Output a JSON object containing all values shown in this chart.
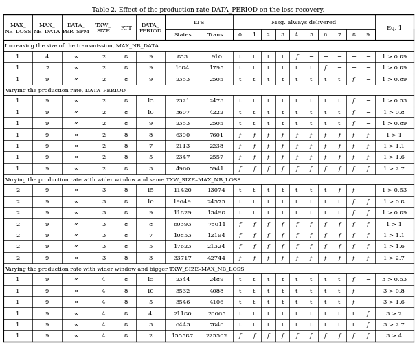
{
  "col_widths_raw": [
    4.5,
    4.5,
    4.5,
    4.0,
    3.0,
    4.5,
    5.5,
    5.0,
    2.2,
    2.2,
    2.2,
    2.2,
    2.2,
    2.2,
    2.2,
    2.2,
    2.2,
    2.2,
    6.0
  ],
  "rows": [
    [
      "1",
      "4",
      "∞",
      "2",
      "8",
      "9",
      "853",
      "910",
      "t",
      "t",
      "t",
      "t",
      "f",
      "−",
      "−",
      "−",
      "−",
      "−",
      "1 > 0.89"
    ],
    [
      "1",
      "7",
      "∞",
      "2",
      "8",
      "9",
      "1684",
      "1795",
      "t",
      "t",
      "t",
      "t",
      "t",
      "t",
      "f",
      "−",
      "−",
      "−",
      "1 > 0.89"
    ],
    [
      "1",
      "9",
      "∞",
      "2",
      "8",
      "9",
      "2353",
      "2505",
      "t",
      "t",
      "t",
      "t",
      "t",
      "t",
      "t",
      "t",
      "f",
      "−",
      "1 > 0.89"
    ],
    [
      "1",
      "9",
      "∞",
      "2",
      "8",
      "15",
      "2321",
      "2473",
      "t",
      "t",
      "t",
      "t",
      "t",
      "t",
      "t",
      "t",
      "f",
      "−",
      "1 > 0.53"
    ],
    [
      "1",
      "9",
      "∞",
      "2",
      "8",
      "10",
      "3607",
      "4222",
      "t",
      "t",
      "t",
      "t",
      "t",
      "t",
      "t",
      "t",
      "f",
      "−",
      "1 > 0.8"
    ],
    [
      "1",
      "9",
      "∞",
      "2",
      "8",
      "9",
      "2353",
      "2505",
      "t",
      "t",
      "t",
      "t",
      "t",
      "t",
      "t",
      "t",
      "f",
      "−",
      "1 > 0.89"
    ],
    [
      "1",
      "9",
      "∞",
      "2",
      "8",
      "8",
      "6390",
      "7601",
      "f",
      "f",
      "f",
      "f",
      "f",
      "f",
      "f",
      "f",
      "f",
      "f",
      "1 > 1"
    ],
    [
      "1",
      "9",
      "∞",
      "2",
      "8",
      "7",
      "2113",
      "2238",
      "f",
      "f",
      "f",
      "f",
      "f",
      "f",
      "f",
      "f",
      "f",
      "f",
      "1 > 1.1"
    ],
    [
      "1",
      "9",
      "∞",
      "2",
      "8",
      "5",
      "2347",
      "2557",
      "f",
      "f",
      "f",
      "f",
      "f",
      "f",
      "f",
      "f",
      "f",
      "f",
      "1 > 1.6"
    ],
    [
      "1",
      "9",
      "∞",
      "2",
      "8",
      "3",
      "4960",
      "5941",
      "f",
      "f",
      "f",
      "f",
      "f",
      "f",
      "f",
      "f",
      "f",
      "f",
      "1 > 2.7"
    ],
    [
      "2",
      "9",
      "∞",
      "3",
      "8",
      "15",
      "11420",
      "13074",
      "t",
      "t",
      "t",
      "t",
      "t",
      "t",
      "t",
      "f",
      "f",
      "−",
      "1 > 0.53"
    ],
    [
      "2",
      "9",
      "∞",
      "3",
      "8",
      "10",
      "19649",
      "24575",
      "t",
      "t",
      "t",
      "t",
      "t",
      "t",
      "t",
      "t",
      "f",
      "f",
      "1 > 0.8"
    ],
    [
      "2",
      "9",
      "∞",
      "3",
      "8",
      "9",
      "11829",
      "13498",
      "t",
      "t",
      "t",
      "t",
      "t",
      "t",
      "t",
      "t",
      "f",
      "f",
      "1 > 0.89"
    ],
    [
      "2",
      "9",
      "∞",
      "3",
      "8",
      "8",
      "60393",
      "78011",
      "f",
      "f",
      "f",
      "f",
      "f",
      "f",
      "f",
      "f",
      "f",
      "f",
      "1 > 1"
    ],
    [
      "2",
      "9",
      "∞",
      "3",
      "8",
      "7",
      "10853",
      "12194",
      "f",
      "f",
      "f",
      "f",
      "f",
      "f",
      "f",
      "f",
      "f",
      "f",
      "1 > 1.1"
    ],
    [
      "2",
      "9",
      "∞",
      "3",
      "8",
      "5",
      "17623",
      "21324",
      "f",
      "f",
      "f",
      "f",
      "f",
      "f",
      "f",
      "f",
      "f",
      "f",
      "1 > 1.6"
    ],
    [
      "2",
      "9",
      "∞",
      "3",
      "8",
      "3",
      "33717",
      "42744",
      "f",
      "f",
      "f",
      "f",
      "f",
      "f",
      "f",
      "f",
      "f",
      "f",
      "1 > 2.7"
    ],
    [
      "1",
      "9",
      "∞",
      "4",
      "8",
      "15",
      "2344",
      "2489",
      "t",
      "t",
      "t",
      "t",
      "t",
      "t",
      "t",
      "t",
      "f",
      "−",
      "3 > 0.53"
    ],
    [
      "1",
      "9",
      "∞",
      "4",
      "8",
      "10",
      "3532",
      "4088",
      "t",
      "t",
      "t",
      "t",
      "t",
      "t",
      "t",
      "t",
      "f",
      "−",
      "3 > 0.8"
    ],
    [
      "1",
      "9",
      "∞",
      "4",
      "8",
      "5",
      "3546",
      "4106",
      "t",
      "t",
      "t",
      "t",
      "t",
      "t",
      "t",
      "t",
      "f",
      "−",
      "3 > 1.6"
    ],
    [
      "1",
      "9",
      "∞",
      "4",
      "8",
      "4",
      "21180",
      "28065",
      "t",
      "t",
      "t",
      "t",
      "t",
      "t",
      "t",
      "t",
      "t",
      "f",
      "3 > 2"
    ],
    [
      "1",
      "9",
      "∞",
      "4",
      "8",
      "3",
      "6443",
      "7848",
      "t",
      "t",
      "t",
      "t",
      "t",
      "t",
      "t",
      "t",
      "t",
      "f",
      "3 > 2.7"
    ],
    [
      "1",
      "9",
      "∞",
      "4",
      "8",
      "2",
      "155587",
      "225502",
      "f",
      "f",
      "f",
      "f",
      "f",
      "f",
      "f",
      "f",
      "f",
      "f",
      "3 > 4"
    ]
  ],
  "sections": [
    {
      "header": "Increasing the size of the transmission, MAX_NB_DATA",
      "row_indices": [
        0,
        1,
        2
      ]
    },
    {
      "header": "Varying the production rate, DATA_PERIOD",
      "row_indices": [
        3,
        4,
        5,
        6,
        7,
        8,
        9
      ]
    },
    {
      "header": "Varying the production rate with wider window and same TXW_SIZE–MAX_NB_LOSS",
      "row_indices": [
        10,
        11,
        12,
        13,
        14,
        15,
        16
      ]
    },
    {
      "header": "Varying the production rate with wider window and bigger TXW_SIZE–MAX_NB_LOSS",
      "row_indices": [
        17,
        18,
        19,
        20,
        21,
        22
      ]
    }
  ],
  "header_row1": [
    "MAX_\nNB_LOSS",
    "MAX_\nNB_DATA",
    "DATA_\nPER_SPM",
    "TXW_\nSIZE",
    "RTT",
    "DATA_\nPERIOD"
  ],
  "lts_label": "LTS",
  "msg_label": "Msg. always delivered",
  "sub_headers": [
    "States",
    "Trans.",
    "0",
    "1",
    "2",
    "3",
    "4",
    "5",
    "6",
    "7",
    "8",
    "9"
  ],
  "eq_label": "Eq. 1",
  "fontsize": 6.0,
  "title": "Table 2. Effect of the production rate DATA_PERIOD on the loss recovery."
}
